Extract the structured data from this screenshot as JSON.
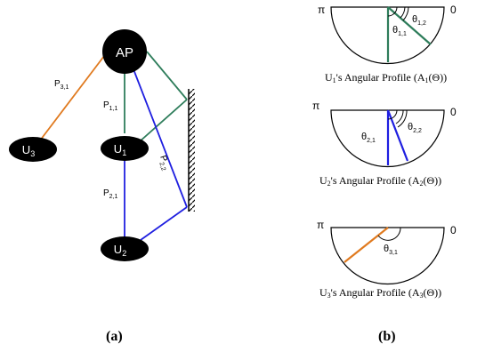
{
  "colors": {
    "green": "#2e7d5b",
    "blue": "#1f1fe0",
    "orange": "#e07a1f",
    "node": "#000000"
  },
  "left": {
    "nodes": {
      "ap": "AP",
      "u1": "U",
      "u1_sub": "1",
      "u2": "U",
      "u2_sub": "2",
      "u3": "U",
      "u3_sub": "3"
    },
    "paths": {
      "p31": "P",
      "p31_sub": "3,1",
      "p11": "P",
      "p11_sub": "1,1",
      "p21": "P",
      "p21_sub": "2,1",
      "p22": "P",
      "p22_sub": "2,2"
    },
    "caption": "(a)"
  },
  "right": {
    "pi": "π",
    "zero": "0",
    "profiles": [
      {
        "theta_a": "θ",
        "theta_a_sub": "1,1",
        "theta_b": "θ",
        "theta_b_sub": "1,2",
        "caption_pre": "U",
        "caption_sub": "1",
        "caption_mid": "'s Angular Profile (A",
        "caption_sub2": "1",
        "caption_post": "(Θ))"
      },
      {
        "theta_a": "θ",
        "theta_a_sub": "2,1",
        "theta_b": "θ",
        "theta_b_sub": "2,2",
        "caption_pre": "U",
        "caption_sub": "2",
        "caption_mid": "'s Angular Profile (A",
        "caption_sub2": "2",
        "caption_post": "(Θ))"
      },
      {
        "theta_a": "θ",
        "theta_a_sub": "3,1",
        "caption_pre": "U",
        "caption_sub": "3",
        "caption_mid": "'s Angular Profile (A",
        "caption_sub2": "3",
        "caption_post": "(Θ))"
      }
    ],
    "caption": "(b)"
  }
}
